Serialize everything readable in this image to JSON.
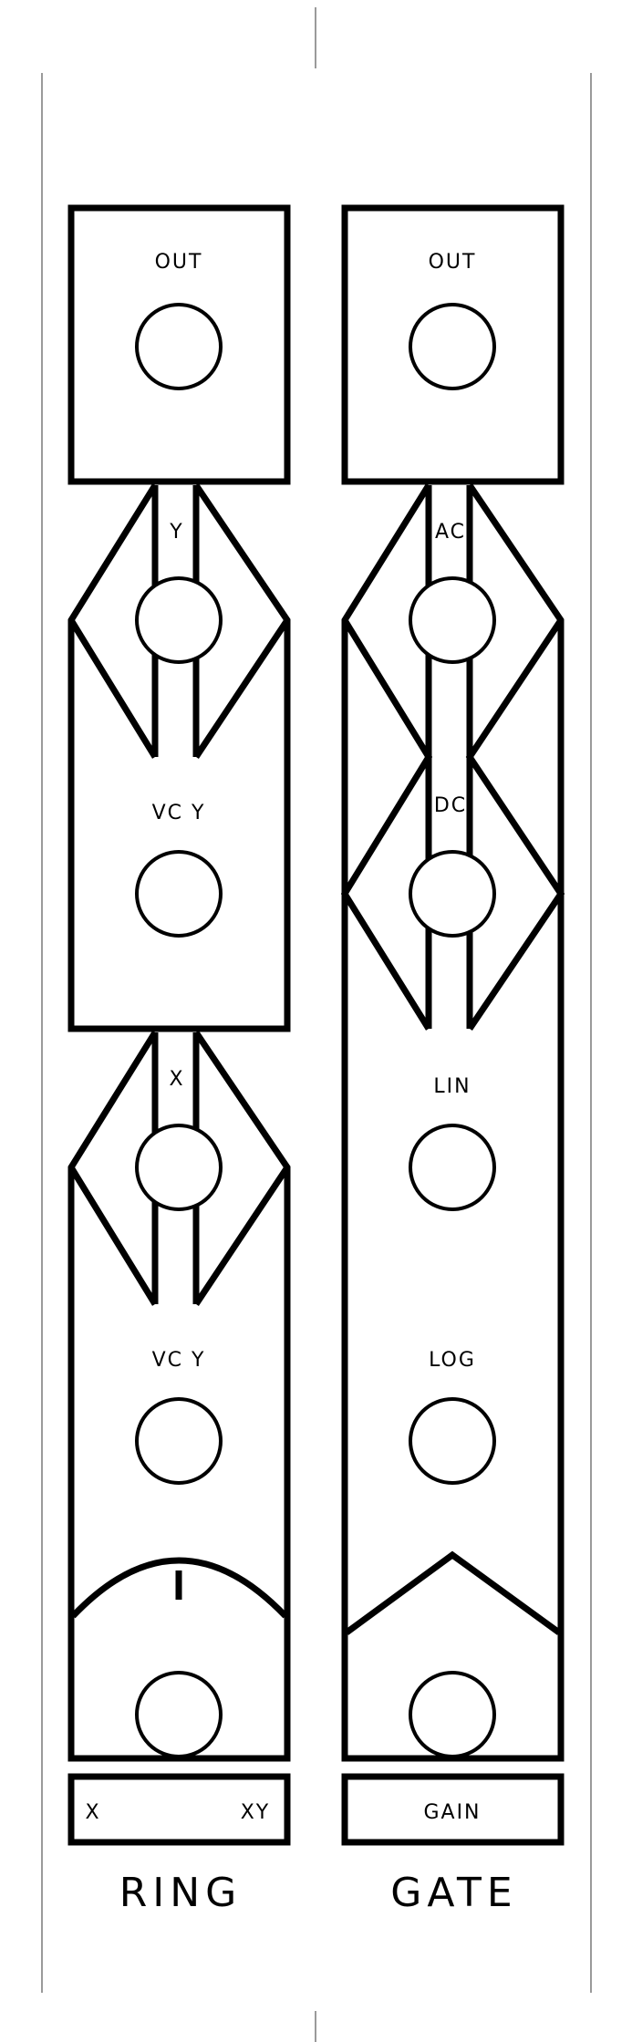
{
  "ring": {
    "name": "RING",
    "out_label": "OUT",
    "y_label": "Y",
    "vc_y_label_1": "VC Y",
    "x_label": "X",
    "vc_y_label_2": "VC Y",
    "knob_left_label": "X",
    "knob_right_label": "XY"
  },
  "gate": {
    "name": "GATE",
    "out_label": "OUT",
    "ac_label": "AC",
    "dc_label": "DC",
    "lin_label": "LIN",
    "log_label": "LOG",
    "gain_label": "GAIN"
  }
}
